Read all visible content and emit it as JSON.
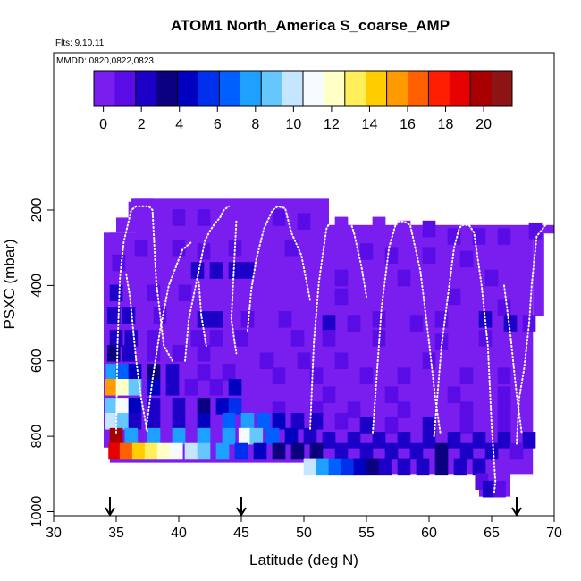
{
  "chart_data": {
    "type": "heatmap",
    "title": "ATOM1 North_America S_coarse_AMP",
    "subtitle": "Flts: 9,10,11",
    "annotation": "MMDD: 0820,0822,0823",
    "xlabel": "Latitude (deg N)",
    "ylabel": "PSXC (mbar)",
    "xlim": [
      30,
      70
    ],
    "ylim": [
      1000,
      100
    ],
    "x_ticks": [
      30,
      35,
      40,
      45,
      50,
      55,
      60,
      65,
      70
    ],
    "y_ticks": [
      200,
      400,
      600,
      800,
      1000
    ],
    "colorbar": {
      "min": -0.5,
      "max": 21.5,
      "ticks": [
        0,
        2,
        4,
        6,
        8,
        10,
        12,
        14,
        16,
        18,
        20
      ],
      "colors": [
        "#7a1ef0",
        "#5a0ce6",
        "#1d00c8",
        "#0a0080",
        "#0000c0",
        "#0030ee",
        "#0060ff",
        "#1da0ff",
        "#66c7ff",
        "#c6e6ff",
        "#f5fbff",
        "#ffffc6",
        "#ffef5a",
        "#ffcd00",
        "#ff9a00",
        "#ff6000",
        "#ff1e00",
        "#e60000",
        "#a80000",
        "#8c1414"
      ]
    },
    "markers": [
      34.5,
      45,
      67
    ],
    "grid": false,
    "legend": "colorbar top",
    "background_value": 0.5,
    "cells": [
      [
        36.5,
        200,
        0.4
      ],
      [
        38,
        200,
        0.3
      ],
      [
        40,
        220,
        0.6
      ],
      [
        42,
        220,
        0.8
      ],
      [
        44,
        230,
        0.5
      ],
      [
        46,
        230,
        0.4
      ],
      [
        48,
        220,
        0.6
      ],
      [
        50,
        230,
        0.7
      ],
      [
        53,
        240,
        0.4
      ],
      [
        56,
        240,
        0.5
      ],
      [
        58,
        250,
        0.4
      ],
      [
        60,
        250,
        0.6
      ],
      [
        62,
        270,
        1.1
      ],
      [
        64,
        270,
        1.6
      ],
      [
        66,
        270,
        1.2
      ],
      [
        68.5,
        255,
        0.7
      ],
      [
        37,
        300,
        0.8
      ],
      [
        40,
        300,
        0.9
      ],
      [
        42,
        310,
        1.2
      ],
      [
        44.5,
        300,
        1.0
      ],
      [
        49,
        300,
        0.6
      ],
      [
        55,
        310,
        0.9
      ],
      [
        57,
        320,
        1.3
      ],
      [
        60,
        320,
        0.9
      ],
      [
        63,
        330,
        1.0
      ],
      [
        35.2,
        340,
        1.5
      ],
      [
        41.5,
        360,
        2.0
      ],
      [
        43,
        360,
        1.9
      ],
      [
        44.5,
        360,
        2.3
      ],
      [
        45.5,
        360,
        2.2
      ],
      [
        53,
        380,
        0.8
      ],
      [
        58,
        380,
        1.0
      ],
      [
        65,
        380,
        0.7
      ],
      [
        35,
        420,
        2.0
      ],
      [
        38,
        420,
        1.1
      ],
      [
        40.5,
        420,
        0.9
      ],
      [
        53,
        430,
        1.2
      ],
      [
        62,
        430,
        0.6
      ],
      [
        66,
        460,
        0.8
      ],
      [
        34.8,
        480,
        2.4
      ],
      [
        36,
        480,
        2.1
      ],
      [
        38.5,
        480,
        1.6
      ],
      [
        42,
        490,
        2.2
      ],
      [
        43,
        490,
        1.9
      ],
      [
        45.5,
        490,
        1.5
      ],
      [
        48.5,
        490,
        1.0
      ],
      [
        52,
        500,
        1.7
      ],
      [
        54,
        500,
        1.4
      ],
      [
        56,
        490,
        1.2
      ],
      [
        59,
        500,
        1.1
      ],
      [
        61,
        490,
        1.3
      ],
      [
        64.5,
        490,
        2.0
      ],
      [
        66.5,
        500,
        1.8
      ],
      [
        68,
        500,
        1.4
      ],
      [
        35,
        540,
        2.6
      ],
      [
        36.2,
        540,
        1.7
      ],
      [
        38,
        540,
        1.1
      ],
      [
        41.5,
        540,
        1.3
      ],
      [
        43,
        540,
        1.5
      ],
      [
        45,
        540,
        0.9
      ],
      [
        49.5,
        540,
        0.8
      ],
      [
        52,
        540,
        1.0
      ],
      [
        56,
        540,
        0.8
      ],
      [
        61,
        550,
        1.0
      ],
      [
        64.5,
        540,
        1.5
      ],
      [
        34.8,
        580,
        3.0
      ],
      [
        36,
        580,
        1.8
      ],
      [
        38,
        580,
        1.2
      ],
      [
        40,
        580,
        0.9
      ],
      [
        42,
        580,
        1.1
      ],
      [
        47,
        600,
        0.9
      ],
      [
        50,
        600,
        1.2
      ],
      [
        53,
        600,
        1.0
      ],
      [
        60,
        600,
        0.8
      ],
      [
        34.7,
        630,
        8.2
      ],
      [
        35.5,
        630,
        6.5
      ],
      [
        36.5,
        630,
        4.8
      ],
      [
        38,
        630,
        3.2
      ],
      [
        39.5,
        630,
        1.9
      ],
      [
        42,
        630,
        1.4
      ],
      [
        44,
        630,
        1.3
      ],
      [
        48,
        640,
        1.0
      ],
      [
        51,
        640,
        1.2
      ],
      [
        55,
        640,
        0.9
      ],
      [
        58,
        640,
        1.1
      ],
      [
        63,
        640,
        1.0
      ],
      [
        66,
        640,
        1.3
      ],
      [
        34.6,
        670,
        15.8
      ],
      [
        35.5,
        670,
        12.5
      ],
      [
        36.5,
        670,
        9.0
      ],
      [
        38,
        670,
        4.0
      ],
      [
        39.5,
        670,
        2.2
      ],
      [
        41,
        670,
        1.6
      ],
      [
        43,
        670,
        1.2
      ],
      [
        44.5,
        670,
        4.0
      ],
      [
        52,
        690,
        1.3
      ],
      [
        57,
        690,
        1.0
      ],
      [
        62,
        690,
        1.1
      ],
      [
        66,
        690,
        1.2
      ],
      [
        34.6,
        720,
        9.2
      ],
      [
        35.5,
        720,
        11.0
      ],
      [
        36.5,
        720,
        4.5
      ],
      [
        38,
        720,
        2.2
      ],
      [
        40,
        720,
        2.0
      ],
      [
        42,
        720,
        3.0
      ],
      [
        43.5,
        720,
        4.0
      ],
      [
        44.5,
        720,
        5.2
      ],
      [
        48,
        730,
        1.5
      ],
      [
        51,
        730,
        1.2
      ],
      [
        54,
        730,
        1.4
      ],
      [
        58,
        730,
        1.3
      ],
      [
        63,
        730,
        1.5
      ],
      [
        66,
        730,
        1.6
      ],
      [
        34.6,
        760,
        10.0
      ],
      [
        35.5,
        760,
        8.5
      ],
      [
        36.5,
        760,
        2.5
      ],
      [
        38,
        760,
        1.9
      ],
      [
        40,
        760,
        2.3
      ],
      [
        42,
        760,
        4.2
      ],
      [
        44,
        760,
        7.0
      ],
      [
        45.5,
        760,
        8.0
      ],
      [
        46.8,
        760,
        6.5
      ],
      [
        48,
        760,
        4.0
      ],
      [
        49.5,
        760,
        2.3
      ],
      [
        51,
        760,
        1.9
      ],
      [
        53,
        760,
        1.6
      ],
      [
        55,
        770,
        1.8
      ],
      [
        57,
        770,
        1.4
      ],
      [
        60,
        770,
        1.8
      ],
      [
        63,
        770,
        1.6
      ],
      [
        66,
        770,
        1.3
      ],
      [
        35,
        800,
        19.5
      ],
      [
        36.2,
        800,
        7.5
      ],
      [
        38,
        800,
        7.6
      ],
      [
        40,
        800,
        7.4
      ],
      [
        42,
        800,
        7.2
      ],
      [
        44,
        800,
        7.8
      ],
      [
        45.3,
        800,
        11.2
      ],
      [
        46.2,
        800,
        9.0
      ],
      [
        47.5,
        800,
        6.2
      ],
      [
        49,
        800,
        4.0
      ],
      [
        50.5,
        800,
        2.5
      ],
      [
        52,
        810,
        2.2
      ],
      [
        54,
        810,
        2.0
      ],
      [
        56,
        810,
        1.8
      ],
      [
        58,
        810,
        2.1
      ],
      [
        60,
        810,
        1.9
      ],
      [
        62,
        810,
        2.2
      ],
      [
        64,
        810,
        2.4
      ],
      [
        66,
        810,
        2.0
      ],
      [
        68,
        810,
        1.8
      ],
      [
        34.9,
        840,
        19.0
      ],
      [
        35.8,
        840,
        16.5
      ],
      [
        36.8,
        840,
        14.5
      ],
      [
        37.8,
        840,
        13.0
      ],
      [
        38.8,
        840,
        12.0
      ],
      [
        39.8,
        840,
        10.5
      ],
      [
        41,
        840,
        9.5
      ],
      [
        42,
        840,
        8.5
      ],
      [
        43.5,
        840,
        7.5
      ],
      [
        45,
        840,
        5.5
      ],
      [
        46.5,
        840,
        4.5
      ],
      [
        48,
        840,
        3.5
      ],
      [
        49.5,
        840,
        3.2
      ],
      [
        51,
        840,
        2.8
      ],
      [
        53,
        840,
        2.5
      ],
      [
        55,
        840,
        2.7
      ],
      [
        57,
        840,
        2.2
      ],
      [
        59,
        840,
        2.5
      ],
      [
        61,
        840,
        2.8
      ],
      [
        63,
        840,
        2.0
      ],
      [
        65,
        840,
        1.8
      ],
      [
        67,
        840,
        1.6
      ],
      [
        50.5,
        880,
        9.5
      ],
      [
        51.5,
        880,
        8.0
      ],
      [
        52.5,
        880,
        6.5
      ],
      [
        53.5,
        880,
        5.5
      ],
      [
        54.5,
        880,
        4.0
      ],
      [
        55.5,
        880,
        3.0
      ],
      [
        56.5,
        880,
        2.6
      ],
      [
        58,
        880,
        2.3
      ],
      [
        59.5,
        880,
        2.5
      ],
      [
        61,
        880,
        2.8
      ],
      [
        62.5,
        880,
        2.4
      ],
      [
        64,
        880,
        2.0
      ],
      [
        64.2,
        920,
        0.7
      ],
      [
        64.8,
        940,
        2.4
      ],
      [
        65.6,
        940,
        1.1
      ]
    ],
    "profiles": [
      [
        [
          35,
          790
        ],
        [
          35.1,
          560
        ],
        [
          35.3,
          380
        ],
        [
          35.6,
          285
        ],
        [
          36.2,
          200
        ],
        [
          36.6,
          190
        ],
        [
          37,
          190
        ],
        [
          37.6,
          190
        ],
        [
          37.9,
          200
        ],
        [
          38.2,
          390
        ],
        [
          38.8,
          560
        ],
        [
          39.5,
          600
        ]
      ],
      [
        [
          35.8,
          370
        ],
        [
          36.1,
          430
        ],
        [
          36.6,
          600
        ],
        [
          37,
          700
        ],
        [
          37.5,
          790
        ]
      ],
      [
        [
          37.4,
          780
        ],
        [
          37.9,
          650
        ],
        [
          38.5,
          520
        ],
        [
          39.2,
          400
        ],
        [
          40.3,
          305
        ],
        [
          41,
          285
        ]
      ],
      [
        [
          41.6,
          390
        ],
        [
          41.8,
          480
        ],
        [
          42.2,
          560
        ]
      ],
      [
        [
          40.5,
          600
        ],
        [
          40.8,
          490
        ],
        [
          42.1,
          280
        ],
        [
          42.5,
          255
        ],
        [
          42.9,
          235
        ],
        [
          43.3,
          220
        ],
        [
          43.6,
          200
        ],
        [
          44.0,
          190
        ]
      ],
      [
        [
          44.6,
          230
        ],
        [
          44.2,
          490
        ],
        [
          44.6,
          580
        ]
      ],
      [
        [
          45.5,
          520
        ],
        [
          45.8,
          410
        ],
        [
          46.2,
          330
        ],
        [
          46.8,
          250
        ],
        [
          47.5,
          200
        ],
        [
          47.9,
          190
        ],
        [
          48.5,
          195
        ],
        [
          49,
          260
        ],
        [
          49.8,
          320
        ],
        [
          50.5,
          440
        ]
      ],
      [
        [
          50.5,
          780
        ],
        [
          50.8,
          550
        ],
        [
          51.2,
          390
        ],
        [
          51.8,
          250
        ],
        [
          52.5,
          205
        ],
        [
          53,
          200
        ],
        [
          53.5,
          210
        ],
        [
          54,
          260
        ],
        [
          54.6,
          350
        ],
        [
          55,
          430
        ]
      ],
      [
        [
          55.5,
          790
        ],
        [
          55.8,
          650
        ],
        [
          56.2,
          460
        ],
        [
          56.8,
          300
        ],
        [
          57.4,
          230
        ],
        [
          58,
          230
        ],
        [
          58.5,
          240
        ],
        [
          59.3,
          360
        ],
        [
          60,
          550
        ],
        [
          60.5,
          700
        ],
        [
          60.9,
          790
        ]
      ],
      [
        [
          60.4,
          800
        ],
        [
          61,
          560
        ],
        [
          62,
          300
        ],
        [
          62.4,
          250
        ],
        [
          62.6,
          240
        ],
        [
          63.2,
          240
        ],
        [
          63.6,
          260
        ],
        [
          64.2,
          400
        ],
        [
          64.7,
          560
        ],
        [
          65,
          770
        ],
        [
          65.3,
          920
        ],
        [
          65.2,
          950
        ]
      ],
      [
        [
          66,
          400
        ],
        [
          66.5,
          530
        ],
        [
          67,
          690
        ],
        [
          67.4,
          790
        ]
      ],
      [
        [
          67,
          820
        ],
        [
          67.2,
          700
        ],
        [
          67.6,
          620
        ],
        [
          68,
          500
        ],
        [
          68.2,
          400
        ],
        [
          68.6,
          270
        ],
        [
          69.3,
          240
        ],
        [
          69.8,
          230
        ],
        [
          70,
          225
        ]
      ]
    ]
  }
}
